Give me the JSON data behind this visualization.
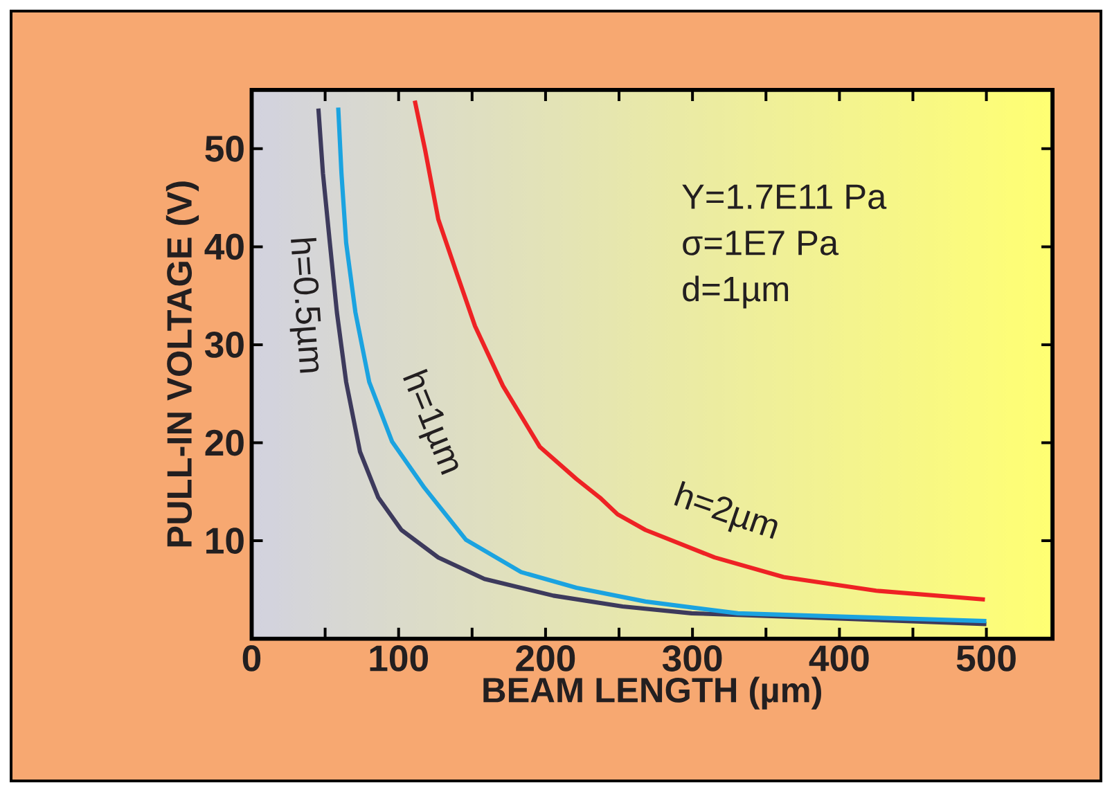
{
  "chart_data": {
    "type": "line",
    "xlabel": "BEAM LENGTH (µm)",
    "ylabel": "PULL-IN VOLTAGE (V)",
    "xlim": [
      0,
      545
    ],
    "ylim": [
      0,
      56
    ],
    "xticks": [
      0,
      {
        "value": 50,
        "label": null
      },
      100,
      {
        "value": 150,
        "label": null
      },
      200,
      {
        "value": 250,
        "label": null
      },
      300,
      {
        "value": 350,
        "label": null
      },
      400,
      {
        "value": 450,
        "label": null
      },
      500
    ],
    "yticks": [
      10,
      20,
      30,
      40,
      50
    ],
    "series": [
      {
        "name": "h=0.5µm",
        "color": "#3d3a5c",
        "x": [
          45.4,
          48.5,
          53.2,
          58,
          64.3,
          73.7,
          86.2,
          101.9,
          127,
          158.4,
          205.3,
          252.4,
          299.4,
          393.5,
          500
        ],
        "values": [
          54.1,
          47.5,
          40.4,
          33.3,
          26.2,
          19.1,
          14.4,
          11.1,
          8.3,
          6.1,
          4.4,
          3.3,
          2.6,
          2.1,
          1.5
        ]
      },
      {
        "name": "h=1µm",
        "color": "#1ba3e0",
        "x": [
          58.9,
          61.1,
          64.3,
          70.6,
          80,
          95.6,
          117.6,
          145.8,
          183.4,
          221,
          268,
          330.8,
          393.5,
          500
        ],
        "values": [
          54.2,
          47.5,
          40.4,
          33.3,
          26.2,
          20.1,
          15.4,
          10.1,
          6.8,
          5.2,
          3.8,
          2.6,
          2.3,
          1.8
        ]
      },
      {
        "name": "h=2µm",
        "color": "#ee2224",
        "x": [
          111,
          118,
          127,
          140,
          152,
          171,
          196,
          221,
          237,
          249,
          268,
          315,
          362,
          425,
          499
        ],
        "values": [
          54.9,
          49.9,
          42.8,
          37.1,
          31.9,
          25.8,
          19.6,
          16.3,
          14.4,
          12.7,
          11.1,
          8.3,
          6.3,
          4.9,
          4.0
        ]
      }
    ],
    "annotations": [
      "Y=1.7E11 Pa",
      "σ=1E7 Pa",
      "d=1µm"
    ]
  }
}
